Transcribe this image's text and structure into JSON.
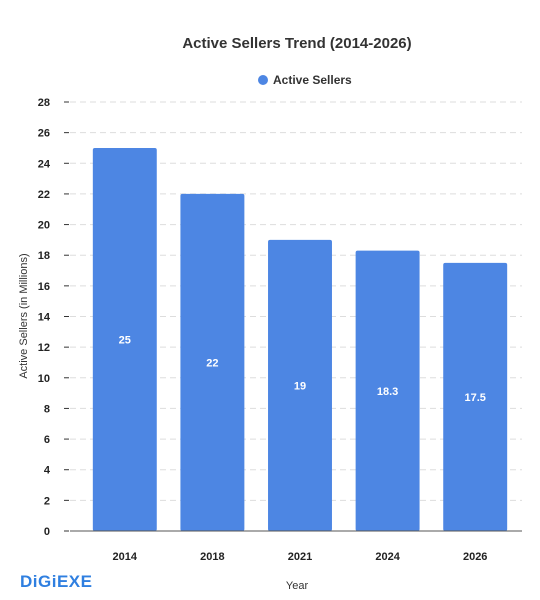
{
  "chart_data": {
    "type": "bar",
    "title": "Active Sellers Trend (2014-2026)",
    "xlabel": "Year",
    "ylabel": "Active Sellers (in Millions)",
    "categories": [
      "2014",
      "2018",
      "2021",
      "2024",
      "2026"
    ],
    "series": [
      {
        "name": "Active Sellers",
        "values": [
          25,
          22,
          19,
          18.3,
          17.5
        ],
        "color": "#4d86e3"
      }
    ],
    "data_labels": [
      "25",
      "22",
      "19",
      "18.3",
      "17.5"
    ],
    "ylim": [
      0,
      28
    ],
    "yticks": [
      0,
      2,
      4,
      6,
      8,
      10,
      12,
      14,
      16,
      18,
      20,
      22,
      24,
      26,
      28
    ],
    "grid": true,
    "legend_position": "top-center"
  },
  "brand": {
    "logo_text": "DiGiEXE",
    "color": "#2f7fe0"
  }
}
